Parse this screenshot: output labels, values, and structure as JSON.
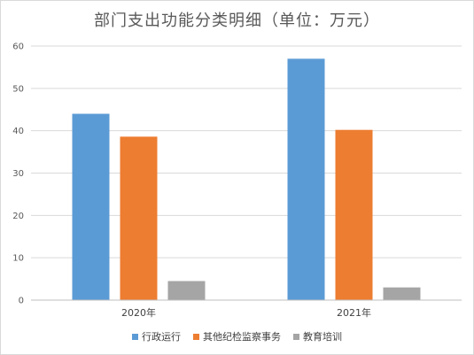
{
  "chart_data": {
    "type": "bar",
    "title": "部门支出功能分类明细（单位：万元）",
    "categories": [
      "2020年",
      "2021年"
    ],
    "series": [
      {
        "name": "行政运行",
        "color": "#5b9bd5",
        "values": [
          44.0,
          57.0
        ]
      },
      {
        "name": "其他纪检监察事务",
        "color": "#ed7d31",
        "values": [
          38.6,
          40.2
        ]
      },
      {
        "name": "教育培训",
        "color": "#a5a5a5",
        "values": [
          4.5,
          3.0
        ]
      }
    ],
    "ylim": [
      0,
      60
    ],
    "yticks": [
      "0",
      "10",
      "20",
      "30",
      "40",
      "50",
      "60"
    ],
    "grid": true,
    "legend_position": "bottom"
  }
}
